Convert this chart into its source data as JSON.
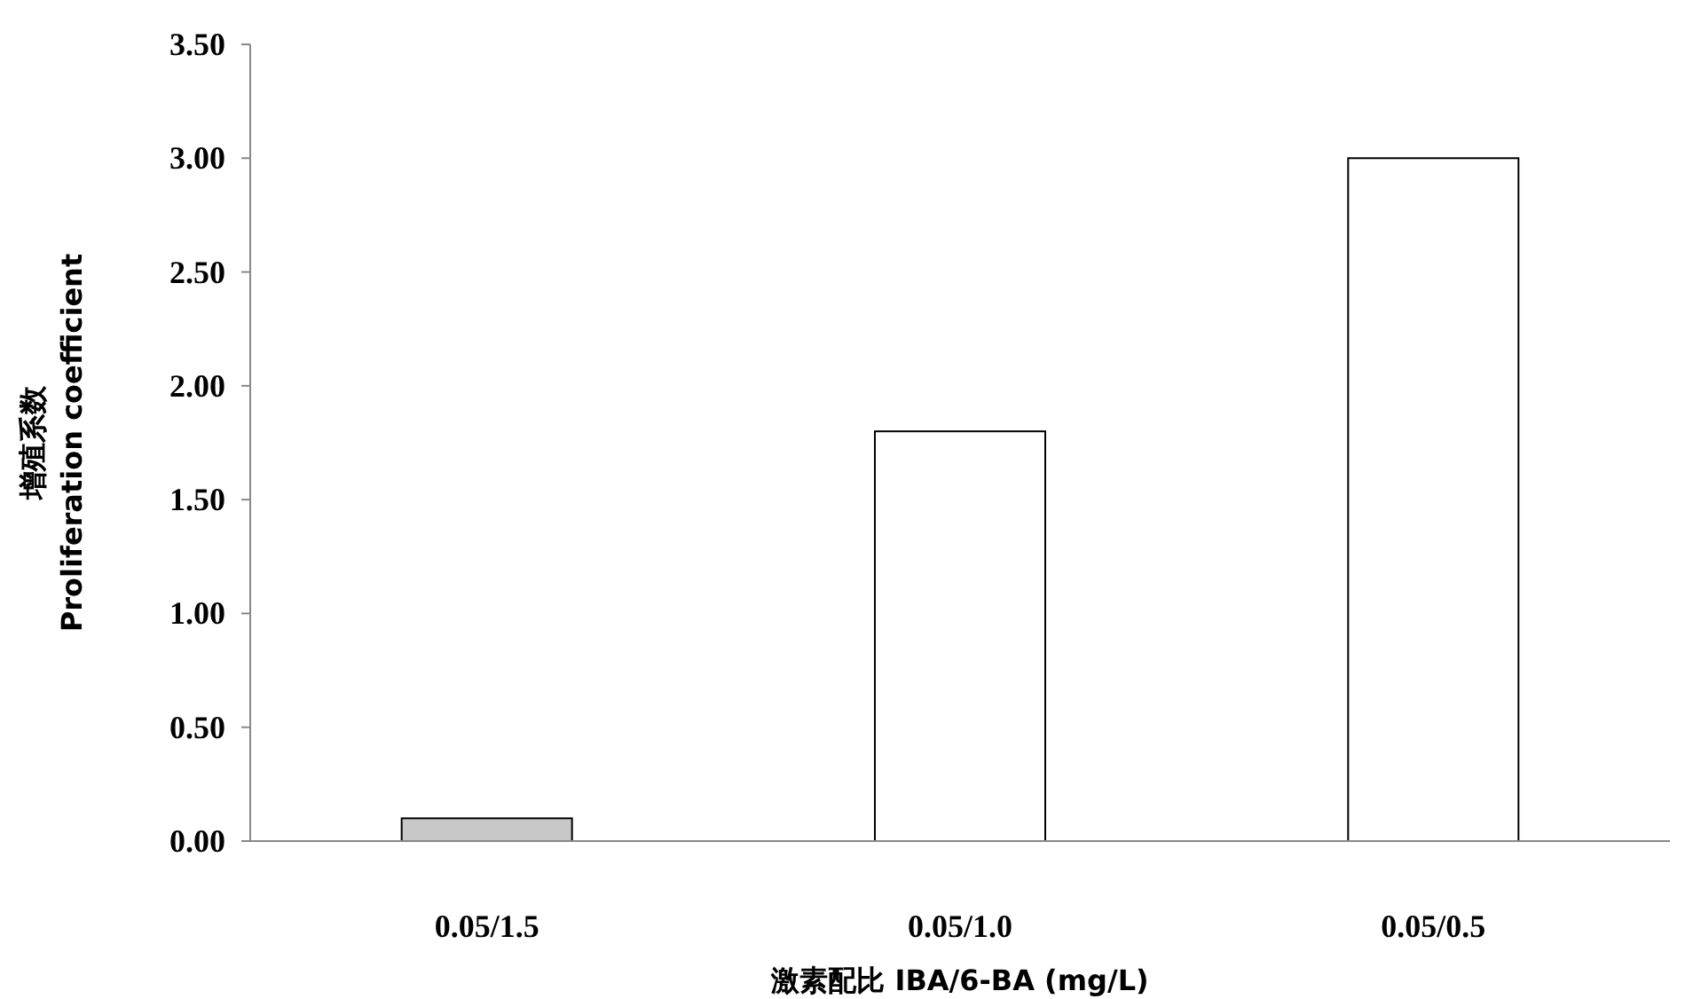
{
  "chart_data": {
    "type": "bar",
    "xlabel": "激素配比 IBA/6-BA (mg/L)",
    "ylabel": "增殖系数\nProliferation coefficient",
    "categories": [
      "0.05/1.5",
      "0.05/1.0",
      "0.05/0.5"
    ],
    "values": [
      0.1,
      1.8,
      3.0
    ],
    "colors": [
      "#c8c8c8",
      "#ffffff",
      "#ffffff"
    ],
    "ylim": [
      0,
      3.5
    ],
    "yticks": [
      {
        "value": 0,
        "label": "0.00"
      },
      {
        "value": 0.5,
        "label": "0.50"
      },
      {
        "value": 1,
        "label": "1.00"
      },
      {
        "value": 1.5,
        "label": "1.50"
      },
      {
        "value": 2,
        "label": "2.00"
      },
      {
        "value": 2.5,
        "label": "2.50"
      },
      {
        "value": 3,
        "label": "3.00"
      },
      {
        "value": 3.5,
        "label": "3.50"
      }
    ],
    "grid": false
  }
}
